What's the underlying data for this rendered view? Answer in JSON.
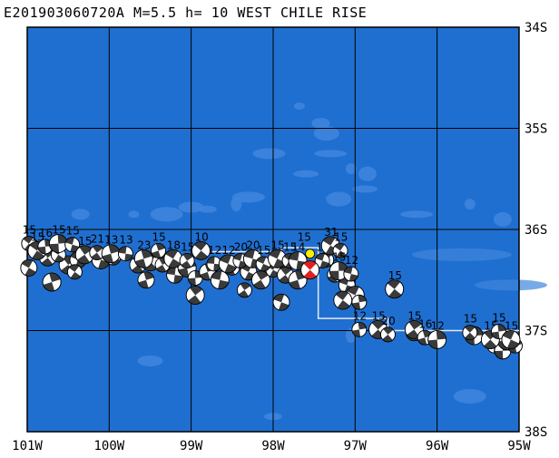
{
  "title": "E201903060720A M=5.5 h= 10 WEST CHILE RISE",
  "map": {
    "lon_range": [
      -101,
      -95
    ],
    "lat_range": [
      -38,
      -34
    ],
    "lon_ticks": [
      {
        "value": -101,
        "label": "101W"
      },
      {
        "value": -100,
        "label": "100W"
      },
      {
        "value": -99,
        "label": "99W"
      },
      {
        "value": -98,
        "label": "98W"
      },
      {
        "value": -97,
        "label": "97W"
      },
      {
        "value": -96,
        "label": "96W"
      },
      {
        "value": -95,
        "label": "95W"
      }
    ],
    "lat_ticks": [
      {
        "value": -34,
        "label": "34S"
      },
      {
        "value": -35,
        "label": "35S"
      },
      {
        "value": -36,
        "label": "36S"
      },
      {
        "value": -37,
        "label": "37S"
      },
      {
        "value": -38,
        "label": "38S"
      }
    ],
    "colors": {
      "ocean": "#1f6fd0",
      "ocean_shallow": "#3f86dd",
      "grid": "#000000",
      "plate_boundary": "#e8e8f0",
      "mechanism_shaded": "#3a3a3a",
      "mechanism_white": "#ffffff",
      "event_compression": "#e02020",
      "epicenter": "#ffee00"
    },
    "plate_boundary": [
      [
        -98.75,
        -36.22
      ],
      [
        -97.9,
        -36.22
      ],
      [
        -97.9,
        -36.18
      ],
      [
        -97.45,
        -36.18
      ],
      [
        -97.45,
        -36.88
      ],
      [
        -96.6,
        -36.88
      ],
      [
        -96.6,
        -37.0
      ],
      [
        -95.6,
        -37.0
      ],
      [
        -95.0,
        -37.0
      ]
    ],
    "epicenter": {
      "lon": -97.55,
      "lat": -36.24
    },
    "main_event": {
      "lon": -97.55,
      "lat": -36.4,
      "label": "15"
    },
    "mechanisms": [
      {
        "lon": -100.98,
        "lat": -36.05,
        "label": "15"
      },
      {
        "lon": -100.88,
        "lat": -36.12,
        "label": "15"
      },
      {
        "lon": -100.78,
        "lat": -36.08,
        "label": "16"
      },
      {
        "lon": -100.62,
        "lat": -36.05,
        "label": "15"
      },
      {
        "lon": -100.45,
        "lat": -36.06,
        "label": "15"
      },
      {
        "lon": -100.3,
        "lat": -36.16,
        "label": "15"
      },
      {
        "lon": -100.15,
        "lat": -36.14,
        "label": "21"
      },
      {
        "lon": -99.98,
        "lat": -36.15,
        "label": "13"
      },
      {
        "lon": -99.8,
        "lat": -36.15,
        "label": "13"
      },
      {
        "lon": -99.58,
        "lat": -36.2,
        "label": "23"
      },
      {
        "lon": -99.4,
        "lat": -36.12,
        "label": "15"
      },
      {
        "lon": -99.22,
        "lat": -36.2,
        "label": "18"
      },
      {
        "lon": -99.05,
        "lat": -36.22,
        "label": "15"
      },
      {
        "lon": -98.88,
        "lat": -36.12,
        "label": "10"
      },
      {
        "lon": -98.72,
        "lat": -36.25,
        "label": "12"
      },
      {
        "lon": -98.55,
        "lat": -36.25,
        "label": "12"
      },
      {
        "lon": -98.4,
        "lat": -36.22,
        "label": "20"
      },
      {
        "lon": -98.25,
        "lat": -36.2,
        "label": "20"
      },
      {
        "lon": -98.12,
        "lat": -36.25,
        "label": "15"
      },
      {
        "lon": -97.95,
        "lat": -36.2,
        "label": "15"
      },
      {
        "lon": -97.8,
        "lat": -36.22,
        "label": "15"
      },
      {
        "lon": -97.7,
        "lat": -36.22,
        "label": "14"
      },
      {
        "lon": -97.4,
        "lat": -36.22,
        "label": "12"
      },
      {
        "lon": -97.3,
        "lat": -36.07,
        "label": "31"
      },
      {
        "lon": -97.18,
        "lat": -36.12,
        "label": "15"
      },
      {
        "lon": -97.2,
        "lat": -36.32,
        "label": "15"
      },
      {
        "lon": -97.05,
        "lat": -36.35,
        "label": "12"
      },
      {
        "lon": -96.52,
        "lat": -36.5,
        "label": "15"
      },
      {
        "lon": -96.95,
        "lat": -36.9,
        "label": "12"
      },
      {
        "lon": -96.72,
        "lat": -36.9,
        "label": "15"
      },
      {
        "lon": -96.6,
        "lat": -36.95,
        "label": "20"
      },
      {
        "lon": -96.28,
        "lat": -36.9,
        "label": "15"
      },
      {
        "lon": -96.15,
        "lat": -36.98,
        "label": "16"
      },
      {
        "lon": -96.0,
        "lat": -37.0,
        "label": "12"
      },
      {
        "lon": -95.6,
        "lat": -36.93,
        "label": "15"
      },
      {
        "lon": -95.35,
        "lat": -37.0,
        "label": "15"
      },
      {
        "lon": -95.25,
        "lat": -36.92,
        "label": "15"
      },
      {
        "lon": -95.1,
        "lat": -37.0,
        "label": "15"
      }
    ],
    "unlabeled_mechanisms": [
      [
        -100.92,
        -36.18
      ],
      [
        -100.75,
        -36.28
      ],
      [
        -100.5,
        -36.35
      ],
      [
        -100.62,
        -36.25
      ],
      [
        -100.38,
        -36.3
      ],
      [
        -100.1,
        -36.3
      ],
      [
        -99.95,
        -36.28
      ],
      [
        -99.65,
        -36.35
      ],
      [
        -99.5,
        -36.32
      ],
      [
        -99.35,
        -36.35
      ],
      [
        -99.2,
        -36.45
      ],
      [
        -99.05,
        -36.38
      ],
      [
        -98.95,
        -36.48
      ],
      [
        -98.8,
        -36.42
      ],
      [
        -98.65,
        -36.5
      ],
      [
        -98.5,
        -36.38
      ],
      [
        -98.3,
        -36.42
      ],
      [
        -98.15,
        -36.5
      ],
      [
        -98.0,
        -36.4
      ],
      [
        -97.85,
        -36.45
      ],
      [
        -97.7,
        -36.5
      ],
      [
        -97.25,
        -36.45
      ],
      [
        -97.1,
        -36.55
      ],
      [
        -97.0,
        -36.65
      ],
      [
        -97.35,
        -36.3
      ],
      [
        -100.98,
        -36.38
      ],
      [
        -100.7,
        -36.52
      ],
      [
        -100.42,
        -36.42
      ],
      [
        -99.55,
        -36.5
      ],
      [
        -98.95,
        -36.65
      ],
      [
        -98.35,
        -36.6
      ],
      [
        -97.9,
        -36.72
      ],
      [
        -97.15,
        -36.7
      ],
      [
        -96.95,
        -36.72
      ],
      [
        -96.28,
        -37.02
      ],
      [
        -95.55,
        -37.05
      ],
      [
        -95.3,
        -37.15
      ],
      [
        -95.2,
        -37.2
      ],
      [
        -95.15,
        -37.1
      ],
      [
        -95.05,
        -37.15
      ]
    ],
    "ridges": [
      [
        -97.68,
        -34.78
      ],
      [
        -97.42,
        -34.95
      ],
      [
        -97.35,
        -35.05
      ],
      [
        -97.3,
        -35.25
      ],
      [
        -97.05,
        -35.4
      ],
      [
        -96.85,
        -35.45
      ],
      [
        -96.88,
        -35.6
      ],
      [
        -98.3,
        -35.68
      ],
      [
        -98.45,
        -35.75
      ],
      [
        -98.8,
        -35.8
      ],
      [
        -99.0,
        -35.78
      ],
      [
        -99.3,
        -35.85
      ],
      [
        -99.7,
        -35.85
      ],
      [
        -100.35,
        -35.85
      ],
      [
        -97.2,
        -35.7
      ],
      [
        -96.25,
        -35.85
      ],
      [
        -95.6,
        -35.75
      ],
      [
        -95.2,
        -35.9
      ],
      [
        -97.6,
        -35.45
      ],
      [
        -98.05,
        -35.25
      ],
      [
        -97.05,
        -37.05
      ],
      [
        -98.0,
        -37.85
      ],
      [
        -99.5,
        -37.3
      ],
      [
        -95.6,
        -37.65
      ]
    ]
  }
}
